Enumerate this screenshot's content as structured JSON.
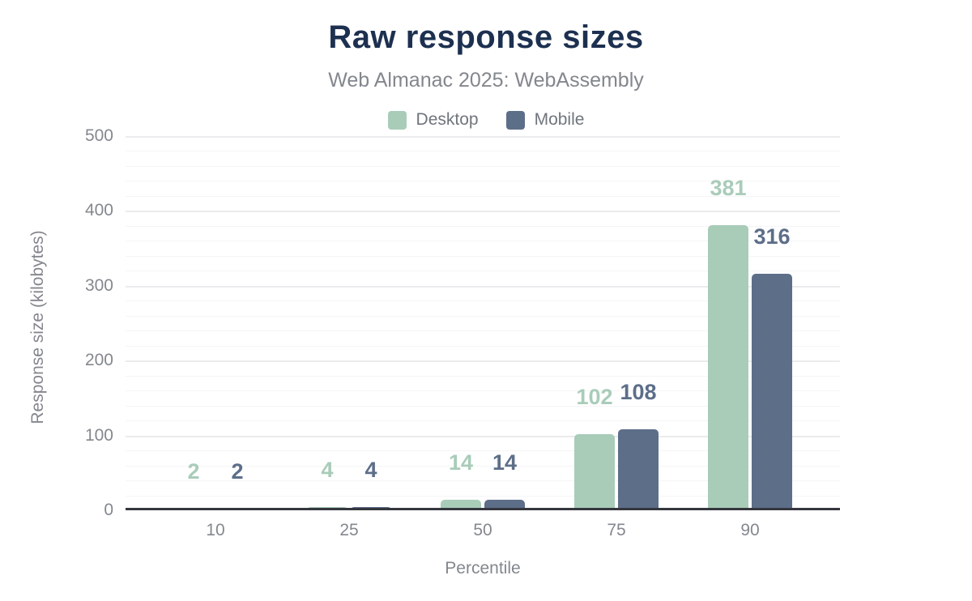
{
  "chart_data": {
    "type": "bar",
    "title": "Raw response sizes",
    "subtitle": "Web Almanac 2025: WebAssembly",
    "categories": [
      "10",
      "25",
      "50",
      "75",
      "90"
    ],
    "series": [
      {
        "name": "Desktop",
        "color": "#a9ccb9",
        "values": [
          2,
          4,
          14,
          102,
          381
        ]
      },
      {
        "name": "Mobile",
        "color": "#5d6e89",
        "values": [
          2,
          4,
          14,
          108,
          316
        ]
      }
    ],
    "xlabel": "Percentile",
    "ylabel": "Response size (kilobytes)",
    "ylim": [
      0,
      500
    ],
    "yticks": [
      0,
      100,
      200,
      300,
      400,
      500
    ],
    "minor_grid_step": 20,
    "grid": true,
    "legend_position": "top",
    "data_labels": true,
    "bar_corner_radius": "rounded-top"
  },
  "colors": {
    "title": "#1d3050",
    "subtitle": "#83878d",
    "axis_line": "#34373e",
    "tick_label": "#84888e",
    "gridline_major": "#ebebee",
    "gridline_minor": "#f5f5f7",
    "background": "#ffffff"
  }
}
